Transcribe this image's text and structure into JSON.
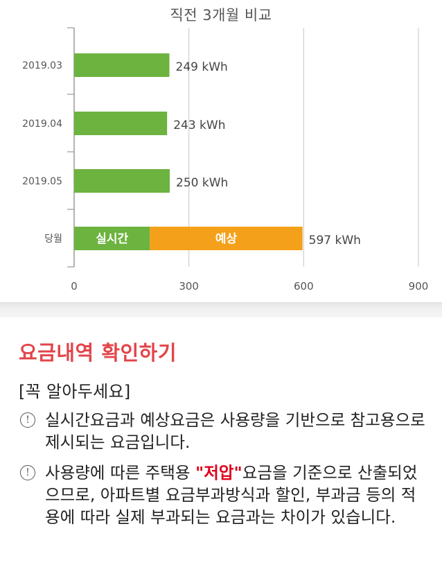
{
  "chart_data": {
    "type": "bar",
    "orientation": "horizontal",
    "title": "직전 3개월 비교",
    "categories": [
      "2019.03",
      "2019.04",
      "2019.05",
      "당월"
    ],
    "values": [
      249,
      243,
      250,
      597
    ],
    "value_labels": [
      "249 kWh",
      "243 kWh",
      "250 kWh",
      "597 kWh"
    ],
    "current_month": {
      "realtime": {
        "label": "실시간",
        "value": 198
      },
      "forecast": {
        "label": "예상",
        "value": 399
      }
    },
    "xticks": [
      "0",
      "300",
      "600",
      "900"
    ],
    "xlim": [
      0,
      900
    ],
    "grid": true,
    "colors": {
      "bar": "#6cb33f",
      "forecast": "#f5a01a",
      "grid": "#d0d0d0",
      "axis": "#999999"
    }
  },
  "info": {
    "heading": "요금내역 확인하기",
    "notice_title": "[꼭 알아두세요]",
    "icon": "info-circle-icon",
    "notice1": "실시간요금과 예상요금은 사용량을 기반으로 참고용으로 제시되는 요금입니다.",
    "notice2_pre": "사용량에 따른 주택용 ",
    "notice2_highlight": "\"저압\"",
    "notice2_post": "요금을 기준으로 산출되었으므로, 아파트별 요금부과방식과 할인, 부과금 등의 적용에 따라 실제 부과되는 요금과는 차이가 있습니다.",
    "colors": {
      "heading": "#e2454a",
      "highlight": "#e0001b"
    }
  }
}
